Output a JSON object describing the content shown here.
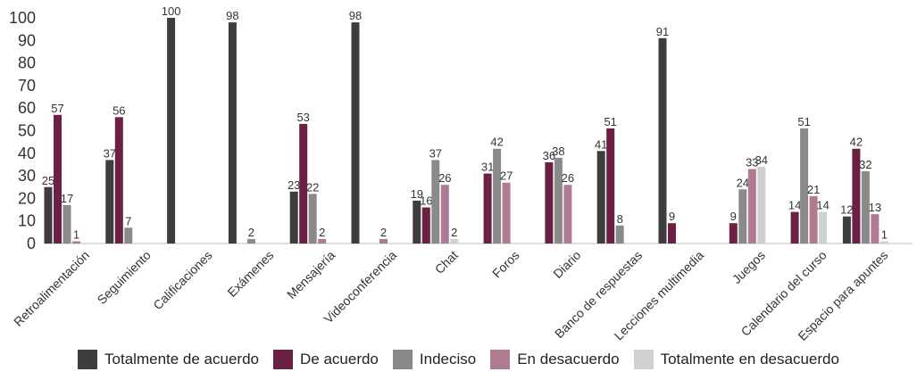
{
  "chart_data": {
    "type": "bar",
    "title": "",
    "xlabel": "",
    "ylabel": "",
    "ylim": [
      0,
      100
    ],
    "yticks": [
      0,
      10,
      20,
      30,
      40,
      50,
      60,
      70,
      80,
      90,
      100
    ],
    "grid": false,
    "legend_position": "bottom",
    "categories": [
      "Retroalimentación",
      "Seguimiento",
      "Calificaciones",
      "Exámenes",
      "Mensajería",
      "Videoconferencia",
      "Chat",
      "Foros",
      "Diario",
      "Banco de respuestas",
      "Lecciones multimedia",
      "Juegos",
      "Calendario del curso",
      "Espacio para apuntes"
    ],
    "series": [
      {
        "name": "Totalmente de acuerdo",
        "color": "#3d3d3d",
        "values": [
          25,
          37,
          100,
          98,
          23,
          98,
          19,
          null,
          null,
          41,
          91,
          null,
          null,
          12
        ]
      },
      {
        "name": "De acuerdo",
        "color": "#6b2044",
        "values": [
          57,
          56,
          null,
          null,
          53,
          null,
          16,
          31,
          36,
          51,
          9,
          9,
          14,
          42
        ]
      },
      {
        "name": "Indeciso",
        "color": "#8a8a8a",
        "values": [
          17,
          7,
          null,
          2,
          22,
          null,
          37,
          42,
          38,
          8,
          null,
          24,
          51,
          32
        ]
      },
      {
        "name": "En desacuerdo",
        "color": "#b07a93",
        "values": [
          1,
          null,
          null,
          null,
          2,
          2,
          26,
          27,
          26,
          null,
          null,
          33,
          21,
          13
        ]
      },
      {
        "name": "Totalmente en desacuerdo",
        "color": "#d0d0d0",
        "values": [
          null,
          null,
          null,
          null,
          null,
          null,
          2,
          null,
          null,
          null,
          null,
          34,
          14,
          1
        ]
      }
    ]
  }
}
